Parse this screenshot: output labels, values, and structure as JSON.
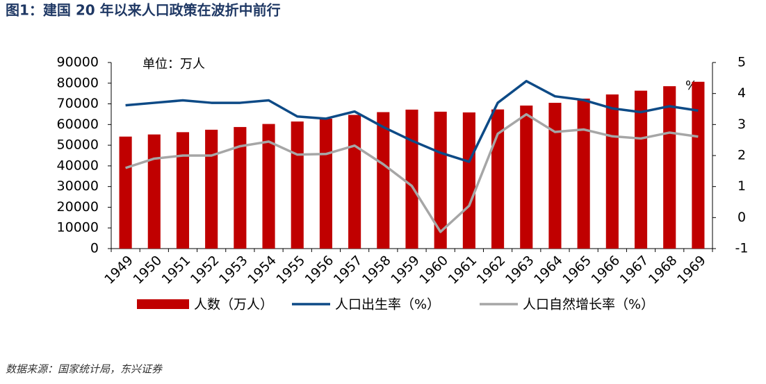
{
  "chart_data": {
    "type": "bar",
    "title": "图1：建国 20 年以来人口政策在波折中前行",
    "unit_note": "单位：万人",
    "y2_unit": "%",
    "source": "数据来源：国家统计局，东兴证券",
    "categories": [
      "1949",
      "1950",
      "1951",
      "1952",
      "1953",
      "1954",
      "1955",
      "1956",
      "1957",
      "1958",
      "1959",
      "1960",
      "1961",
      "1962",
      "1963",
      "1964",
      "1965",
      "1966",
      "1967",
      "1968",
      "1969"
    ],
    "series": [
      {
        "name": "人数（万人）",
        "type": "bar",
        "color": "#c00000",
        "axis": "y",
        "values": [
          54167,
          55196,
          56300,
          57482,
          58796,
          60266,
          61465,
          62828,
          64653,
          65994,
          67207,
          66207,
          65859,
          67295,
          69172,
          70499,
          72538,
          74542,
          76368,
          78534,
          80671
        ]
      },
      {
        "name": "人口出生率（%）",
        "type": "line",
        "color": "#0d4a86",
        "axis": "y2",
        "values": [
          3.62,
          3.7,
          3.78,
          3.7,
          3.7,
          3.78,
          3.26,
          3.19,
          3.42,
          2.92,
          2.48,
          2.09,
          1.8,
          3.7,
          4.4,
          3.91,
          3.79,
          3.52,
          3.4,
          3.59,
          3.45
        ]
      },
      {
        "name": "人口自然增长率（%）",
        "type": "line",
        "color": "#a6a6a6",
        "axis": "y2",
        "values": [
          1.6,
          1.9,
          2.0,
          2.0,
          2.3,
          2.45,
          2.03,
          2.05,
          2.32,
          1.72,
          1.02,
          -0.46,
          0.38,
          2.7,
          3.33,
          2.76,
          2.84,
          2.62,
          2.55,
          2.74,
          2.61
        ]
      }
    ],
    "ylim": [
      0,
      90000
    ],
    "yticks": [
      0,
      10000,
      20000,
      30000,
      40000,
      50000,
      60000,
      70000,
      80000,
      90000
    ],
    "y2lim": [
      -1,
      5
    ],
    "y2ticks": [
      -1,
      0,
      1,
      2,
      3,
      4,
      5
    ],
    "grid": false
  }
}
